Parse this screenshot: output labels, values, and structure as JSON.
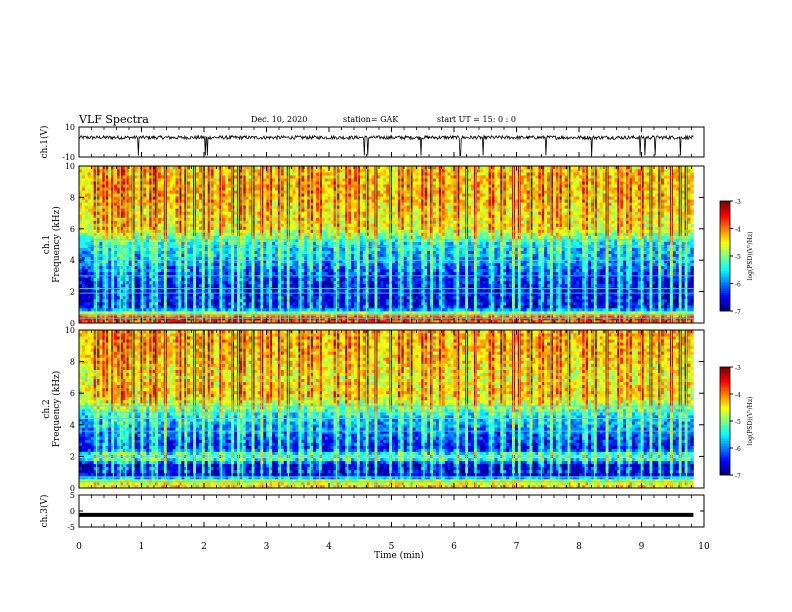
{
  "header": {
    "title": "VLF Spectra",
    "date": "Dec. 10, 2020",
    "station": "station= GAK",
    "start": "start  UT =   15: 0   : 0"
  },
  "chart_data": {
    "type": "heatmap",
    "xlabel": "Time  (min)",
    "xlim": [
      0,
      10
    ],
    "x_ticks": [
      "0",
      "1",
      "2",
      "3",
      "4",
      "5",
      "6",
      "7",
      "8",
      "9",
      "10"
    ],
    "data_end_min": 9.83,
    "panels": [
      {
        "id": "ch1-waveform",
        "type": "line",
        "ylabel": "ch.1(V)",
        "ylim": [
          -10,
          10
        ],
        "y_ticks": [
          "10",
          "-10"
        ],
        "baseline": 3,
        "noise_amplitude": 1.2,
        "spike_times_min": [
          0.95,
          2.02,
          2.05,
          4.57,
          4.62,
          5.47,
          6.1,
          6.47,
          7.47,
          8.2,
          8.98,
          9.05,
          9.22,
          9.62
        ]
      },
      {
        "id": "ch1-spectrogram",
        "type": "heatmap",
        "ylabel": "ch.1\nFrequency  (kHz)",
        "ylim": [
          0,
          10
        ],
        "y_ticks": [
          "0",
          "2",
          "4",
          "6",
          "8",
          "10"
        ],
        "colorbar": {
          "label": "log(PSD)(V²/Hz)",
          "range": [
            -7,
            -3
          ],
          "ticks": [
            "-3",
            "-4",
            "-5",
            "-6",
            "-7"
          ]
        },
        "log_psd_profile": [
          {
            "khz": 0.0,
            "v": -4.0
          },
          {
            "khz": 0.4,
            "v": -3.6
          },
          {
            "khz": 0.7,
            "v": -5.2
          },
          {
            "khz": 1.0,
            "v": -6.6
          },
          {
            "khz": 2.0,
            "v": -6.7
          },
          {
            "khz": 3.0,
            "v": -6.5
          },
          {
            "khz": 4.0,
            "v": -6.0
          },
          {
            "khz": 5.0,
            "v": -5.8
          },
          {
            "khz": 5.6,
            "v": -5.1
          },
          {
            "khz": 6.0,
            "v": -4.7
          },
          {
            "khz": 7.0,
            "v": -4.6
          },
          {
            "khz": 8.0,
            "v": -4.4
          },
          {
            "khz": 9.0,
            "v": -4.4
          },
          {
            "khz": 10.0,
            "v": -4.5
          }
        ],
        "lines_khz": [
          0.3,
          0.5,
          1.9,
          2.2,
          3.0,
          4.0,
          4.9,
          5.3
        ]
      },
      {
        "id": "ch2-spectrogram",
        "type": "heatmap",
        "ylabel": "ch.2\nFrequency  (kHz)",
        "ylim": [
          0,
          10
        ],
        "y_ticks": [
          "0",
          "2",
          "4",
          "6",
          "8",
          "10"
        ],
        "colorbar": {
          "label": "log(PSD)(V²/Hz)",
          "range": [
            -7,
            -3
          ],
          "ticks": [
            "-3",
            "-4",
            "-5",
            "-6",
            "-7"
          ]
        },
        "log_psd_profile": [
          {
            "khz": 0.0,
            "v": -4.3
          },
          {
            "khz": 0.5,
            "v": -4.9
          },
          {
            "khz": 0.8,
            "v": -6.6
          },
          {
            "khz": 1.5,
            "v": -6.8
          },
          {
            "khz": 2.0,
            "v": -5.0
          },
          {
            "khz": 2.5,
            "v": -6.6
          },
          {
            "khz": 3.5,
            "v": -6.2
          },
          {
            "khz": 4.5,
            "v": -5.8
          },
          {
            "khz": 5.3,
            "v": -5.0
          },
          {
            "khz": 6.0,
            "v": -4.5
          },
          {
            "khz": 7.0,
            "v": -4.7
          },
          {
            "khz": 8.0,
            "v": -4.5
          },
          {
            "khz": 9.0,
            "v": -4.4
          },
          {
            "khz": 10.0,
            "v": -4.4
          }
        ],
        "lines_khz": [
          0.4,
          0.7,
          2.0,
          3.6,
          4.4,
          4.8,
          5.2
        ]
      },
      {
        "id": "ch3-waveform",
        "type": "line",
        "ylabel": "ch.3(V)",
        "ylim": [
          -5,
          5
        ],
        "y_ticks": [
          "5",
          "0",
          "-5"
        ],
        "baseline": -1.2,
        "noise_amplitude": 0
      }
    ],
    "storm_times_min": [
      0.28,
      0.42,
      0.55,
      0.66,
      0.75,
      0.86,
      1.02,
      1.17,
      1.25,
      1.38,
      1.6,
      1.72,
      1.85,
      1.98,
      2.1,
      2.28,
      2.45,
      2.55,
      2.62,
      2.78,
      2.92,
      3.05,
      3.22,
      3.35,
      3.55,
      3.7,
      3.85,
      4.12,
      4.3,
      4.46,
      4.6,
      4.75,
      4.98,
      5.15,
      5.3,
      5.52,
      5.65,
      5.8,
      6.05,
      6.2,
      6.35,
      6.6,
      6.78,
      6.95,
      7.05,
      7.22,
      7.4,
      7.55,
      7.68,
      7.83,
      8.1,
      8.25,
      8.45,
      8.65,
      8.8,
      9.0,
      9.15,
      9.3,
      9.48,
      9.62,
      9.72
    ]
  }
}
